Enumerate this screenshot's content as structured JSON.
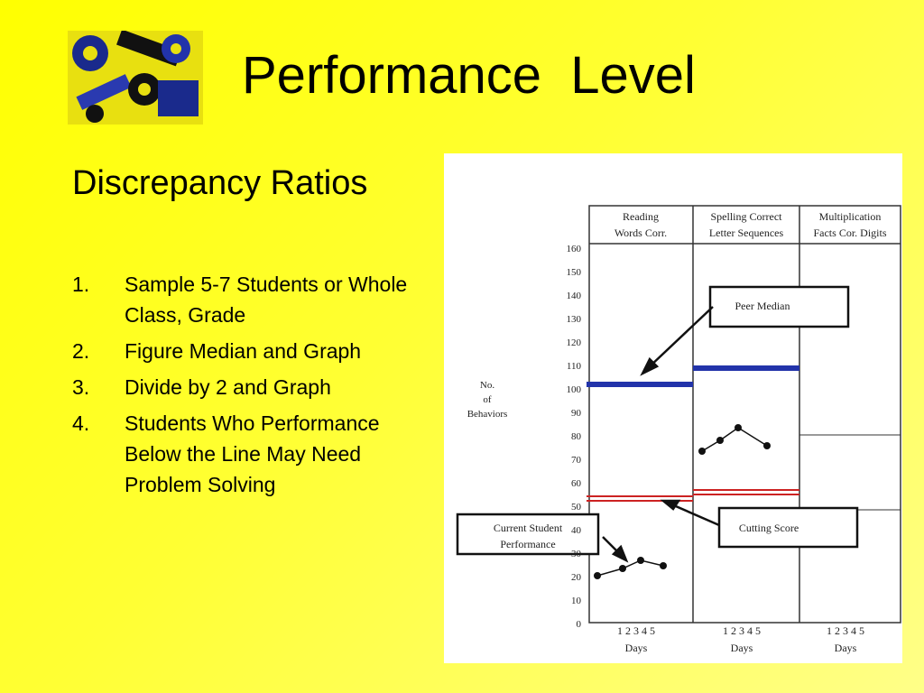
{
  "header": {
    "title": "Performance  Level"
  },
  "subtitle": "Discrepancy Ratios",
  "list": [
    {
      "number": "1.",
      "text": "Sample 5-7 Students or Whole Class, Grade"
    },
    {
      "number": "2.",
      "text": "Figure Median and Graph"
    },
    {
      "number": "3.",
      "text": "Divide by 2 and Graph"
    },
    {
      "number": "4.",
      "text": "Students Who Performance Below the Line May Need Problem Solving"
    }
  ],
  "figure": {
    "columns": [
      [
        "Reading",
        "Words Corr."
      ],
      [
        "Spelling  Correct",
        "Letter Sequences"
      ],
      [
        "Multiplication",
        "Facts Cor. Digits"
      ]
    ],
    "y_label": [
      "No.",
      "of",
      "Behaviors"
    ],
    "y_ticks": [
      "160",
      "150",
      "140",
      "130",
      "120",
      "110",
      "100",
      "90",
      "80",
      "70",
      "60",
      "50",
      "40",
      "30",
      "20",
      "10",
      "0"
    ],
    "days": "1  2  3  4  5",
    "days_label": "Days",
    "peer_median": "Peer Median",
    "cutting_score": "Cutting Score",
    "current": [
      "Current Student",
      "Performance"
    ]
  }
}
